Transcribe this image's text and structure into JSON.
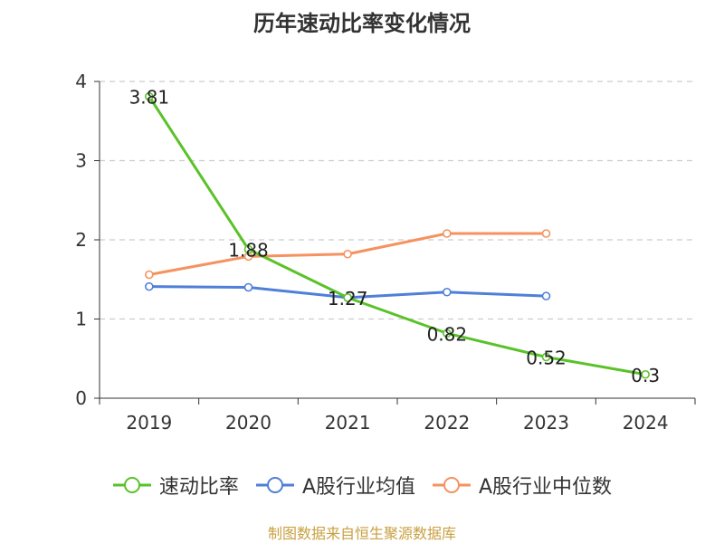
{
  "chart_data": {
    "type": "line",
    "title": "历年速动比率变化情况",
    "x": [
      "2019",
      "2020",
      "2021",
      "2022",
      "2023",
      "2024"
    ],
    "ylim": [
      0,
      4
    ],
    "yticks": [
      0,
      1,
      2,
      3,
      4
    ],
    "grid": true,
    "legend_position": "bottom",
    "series": [
      {
        "name": "速动比率",
        "color": "#5ac229",
        "values": [
          3.81,
          1.88,
          1.27,
          0.82,
          0.52,
          0.3
        ],
        "labels": [
          "3.81",
          "1.88",
          "1.27",
          "0.82",
          "0.52",
          "0.3"
        ]
      },
      {
        "name": "A股行业均值",
        "color": "#4f7fd8",
        "values": [
          1.41,
          1.4,
          1.27,
          1.34,
          1.29,
          null
        ]
      },
      {
        "name": "A股行业中位数",
        "color": "#f5925f",
        "values": [
          1.56,
          1.79,
          1.82,
          2.08,
          2.08,
          null
        ]
      }
    ]
  },
  "source": "制图数据来自恒生聚源数据库"
}
